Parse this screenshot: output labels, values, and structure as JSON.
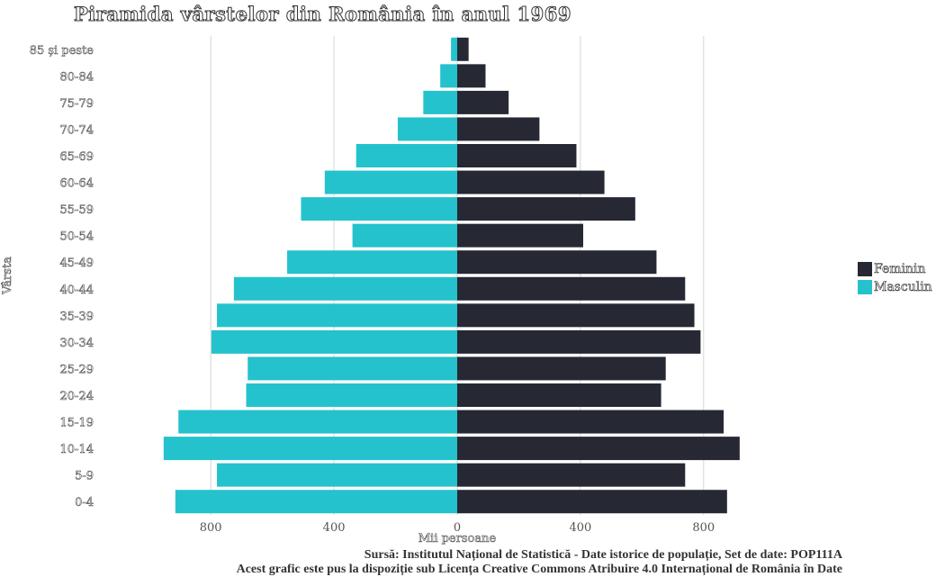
{
  "chart_data": {
    "type": "bar",
    "orientation": "horizontal-population-pyramid",
    "title": "Piramida vârstelor din România în anul 1969",
    "xlabel": "Mii persoane",
    "ylabel": "Vârsta",
    "xlim": [
      -970,
      970
    ],
    "x_ticks": [
      {
        "value": -800,
        "label": "800"
      },
      {
        "value": -400,
        "label": "400"
      },
      {
        "value": 0,
        "label": "0"
      },
      {
        "value": 400,
        "label": "400"
      },
      {
        "value": 800,
        "label": "800"
      }
    ],
    "grid": "vertical major gridlines",
    "legend_position": "right",
    "categories": [
      "0-4",
      "5-9",
      "10-14",
      "15-19",
      "20-24",
      "25-29",
      "30-34",
      "35-39",
      "40-44",
      "45-49",
      "50-54",
      "55-59",
      "60-64",
      "65-69",
      "70-74",
      "75-79",
      "80-84",
      "85 și peste"
    ],
    "series": [
      {
        "name": "Feminin",
        "color": "#262833",
        "side": "right",
        "values": [
          876,
          740,
          917,
          865,
          662,
          677,
          790,
          770,
          740,
          647,
          409,
          578,
          478,
          387,
          267,
          167,
          92,
          37
        ]
      },
      {
        "name": "Masculin",
        "color": "#24c2cc",
        "side": "left",
        "values": [
          915,
          780,
          953,
          905,
          685,
          680,
          798,
          780,
          725,
          552,
          340,
          507,
          430,
          328,
          193,
          110,
          55,
          20
        ]
      }
    ]
  },
  "caption": {
    "line1": "Sursă: Institutul Național de Statistică - Date istorice de populație, Set de date: POP111A",
    "line2": "Acest grafic este pus la dispoziție sub Licența Creative Commons Atribuire 4.0 Internațional de România în Date"
  }
}
